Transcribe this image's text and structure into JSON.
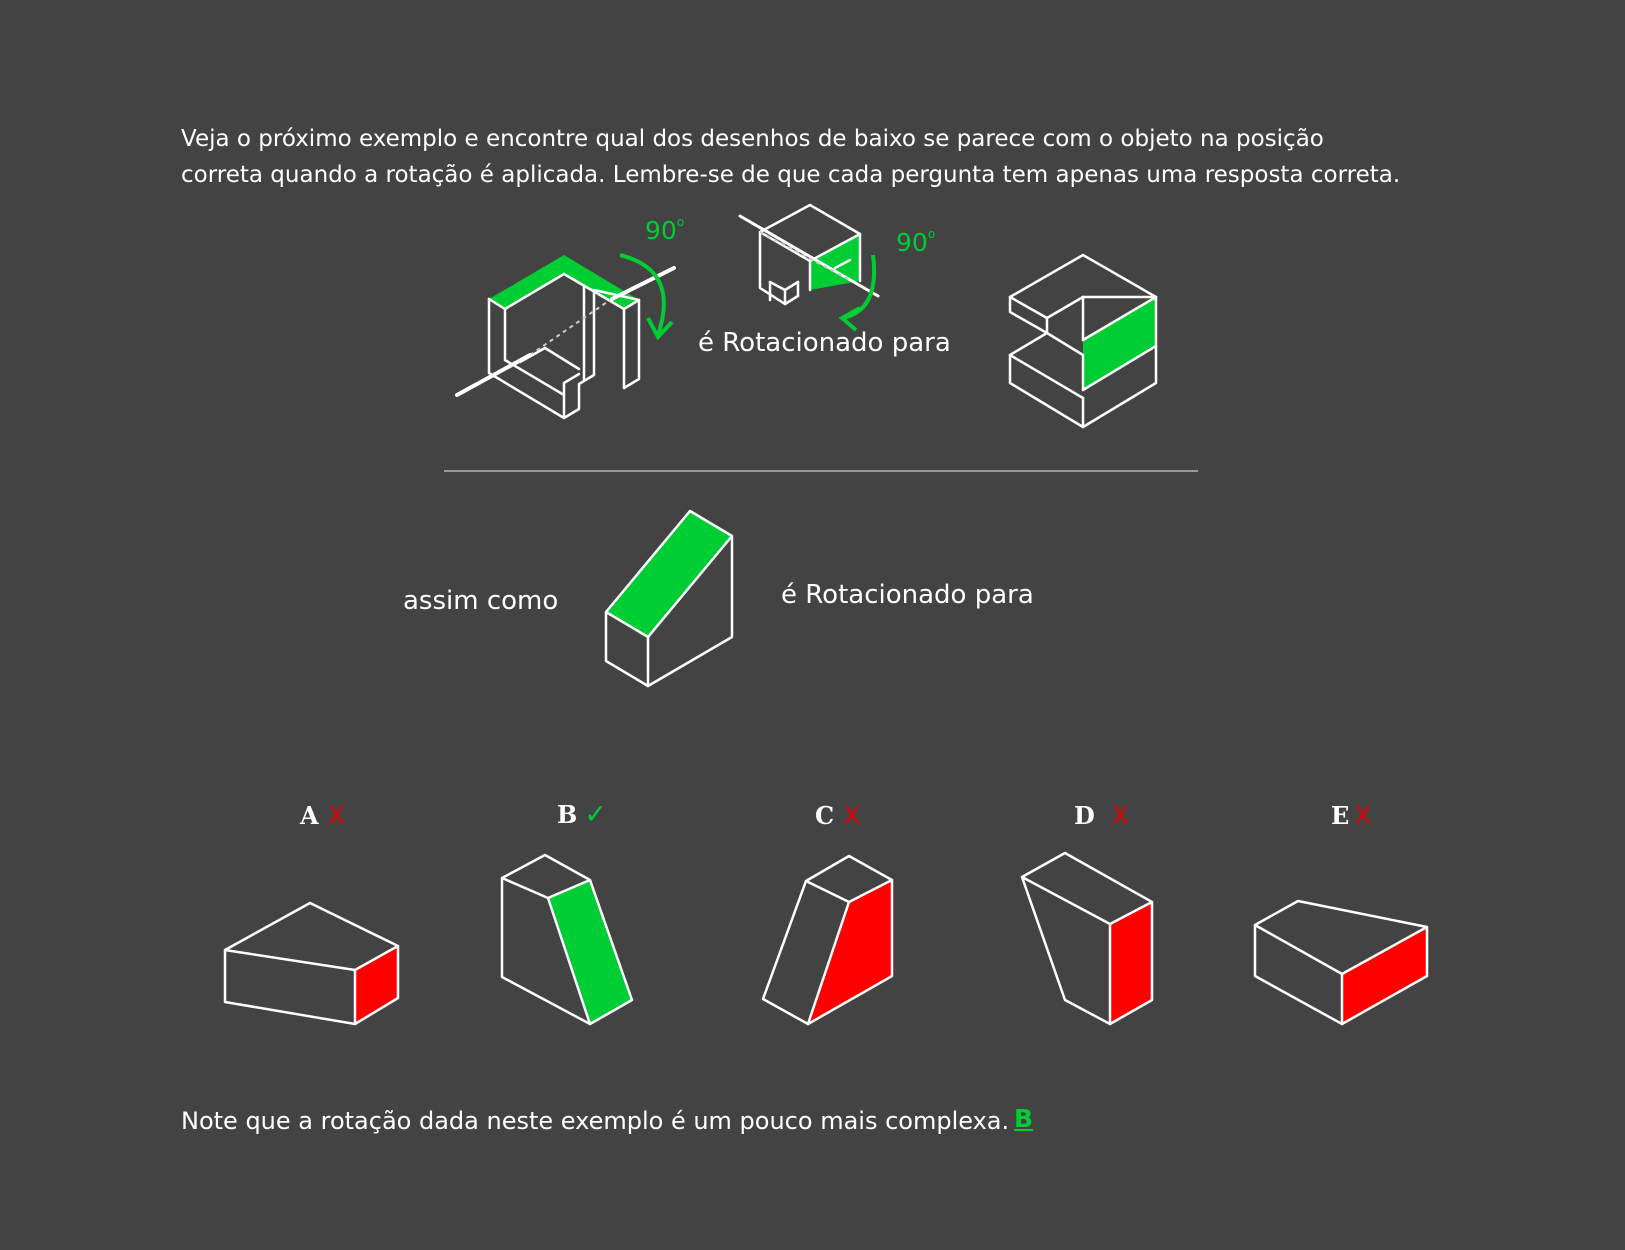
{
  "instructions": {
    "line1": "Veja o próximo exemplo e encontre qual dos desenhos de baixo se parece com o objeto na posição",
    "line2": "correta quando a rotação é aplicada. Lembre-se de que cada pergunta tem apenas uma resposta correta."
  },
  "example": {
    "angle1": "90",
    "angle2": "90",
    "rotated_label": "é Rotacionado para"
  },
  "question": {
    "prefix": "assim como",
    "rotated_label": "é Rotacionado para"
  },
  "options": [
    {
      "letter": "A",
      "mark": "X",
      "correct": false
    },
    {
      "letter": "B",
      "mark": "✓",
      "correct": true
    },
    {
      "letter": "C",
      "mark": "X",
      "correct": false
    },
    {
      "letter": "D",
      "mark": "X",
      "correct": false
    },
    {
      "letter": "E",
      "mark": "X",
      "correct": false
    }
  ],
  "footer": {
    "note": "Note que a rotação dada neste exemplo é um pouco mais complexa.",
    "answer": "B"
  },
  "colors": {
    "background": "#434343",
    "highlight_correct": "#00cc33",
    "highlight_wrong": "#ff0000",
    "line": "#ffffff"
  }
}
